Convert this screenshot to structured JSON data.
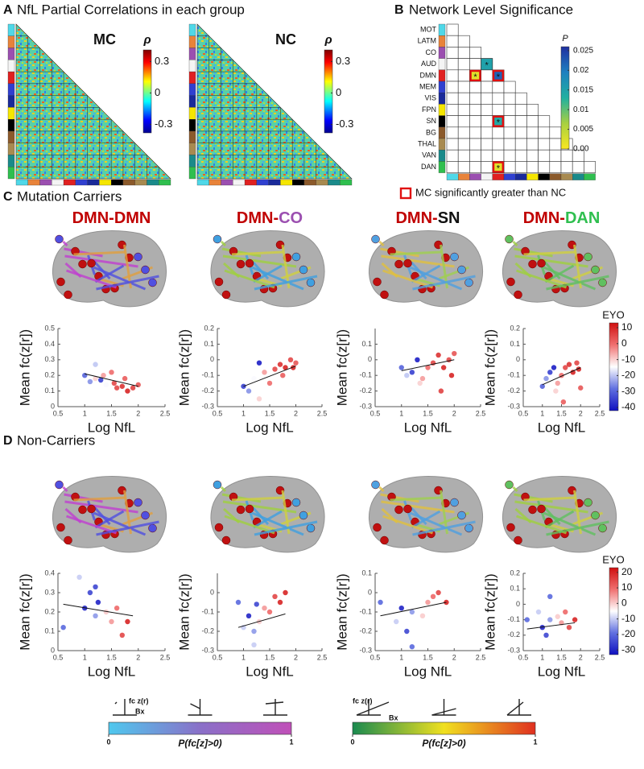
{
  "panel_a": {
    "letter": "A",
    "title": "NfL Partial Correlations in each group",
    "groups": [
      "MC",
      "NC"
    ],
    "colorbar": {
      "label": "ρ",
      "lim": [
        -0.38,
        0.41
      ],
      "ticks": [
        0.3,
        0,
        -0.3
      ]
    }
  },
  "panel_b": {
    "letter": "B",
    "title": "Network Level Significance",
    "networks": [
      {
        "name": "MOT",
        "color": "#4fd8e8"
      },
      {
        "name": "LATM",
        "color": "#e8833a"
      },
      {
        "name": "CO",
        "color": "#9b4fb0"
      },
      {
        "name": "AUD",
        "color": "#f4f4f4"
      },
      {
        "name": "DMN",
        "color": "#e02020"
      },
      {
        "name": "MEM",
        "color": "#3040d0"
      },
      {
        "name": "VIS",
        "color": "#1a2a9a"
      },
      {
        "name": "FPN",
        "color": "#f5e600"
      },
      {
        "name": "SN",
        "color": "#000000"
      },
      {
        "name": "BG",
        "color": "#8b5a2b"
      },
      {
        "name": "THAL",
        "color": "#a88a50"
      },
      {
        "name": "VAN",
        "color": "#1a8a8a"
      },
      {
        "name": "DAN",
        "color": "#2fbf4f"
      }
    ],
    "cells": [
      {
        "row": "AUD",
        "col": "AUD",
        "p": 0.015,
        "label": "*",
        "boxed": false
      },
      {
        "row": "DMN",
        "col": "CO",
        "p": 0.002,
        "label": "*",
        "boxed": true
      },
      {
        "row": "DMN",
        "col": "DMN",
        "p": 0.022,
        "label": "*",
        "boxed": true
      },
      {
        "row": "SN",
        "col": "DMN",
        "p": 0.014,
        "label": "*",
        "boxed": true
      },
      {
        "row": "DAN",
        "col": "DMN",
        "p": 0.002,
        "label": "*",
        "boxed": true
      }
    ],
    "colorbar": {
      "label": "P",
      "lim": [
        0,
        0.026
      ],
      "ticks": [
        0.025,
        0.02,
        0.015,
        0.01,
        0.005,
        {
          "value": 0,
          "label": "0.00"
        }
      ]
    },
    "legend": "MC significantly greater than NC"
  },
  "panels": [
    {
      "letter": "C",
      "title": "Mutation Carriers",
      "colorbar": {
        "label": "EYO",
        "lim": [
          -42,
          13
        ],
        "ticks": [
          10,
          0,
          -10,
          -20,
          -30,
          -40
        ]
      },
      "plots": [
        {
          "title": {
            "a": "DMN",
            "sep": "-",
            "b": "DMN",
            "a_color": "#c00000",
            "b_color": "#c00000"
          },
          "xlabel": "Log NfL",
          "ylabel": "Mean fc(z[r])",
          "xlim": [
            0.5,
            2.5
          ],
          "xticks": [
            0.5,
            1,
            1.5,
            2,
            2.5
          ],
          "ylim": [
            0,
            0.5
          ],
          "yticks": [
            0,
            0.1,
            0.2,
            0.3,
            0.4,
            0.5
          ],
          "points": [
            [
              1.0,
              0.2,
              -30
            ],
            [
              1.1,
              0.16,
              -25
            ],
            [
              1.2,
              0.18,
              -10
            ],
            [
              1.3,
              0.17,
              -35
            ],
            [
              1.35,
              0.2,
              -5
            ],
            [
              1.4,
              0.14,
              -15
            ],
            [
              1.5,
              0.22,
              0
            ],
            [
              1.55,
              0.15,
              5
            ],
            [
              1.6,
              0.12,
              5
            ],
            [
              1.7,
              0.13,
              8
            ],
            [
              1.75,
              0.18,
              2
            ],
            [
              1.8,
              0.1,
              10
            ],
            [
              1.9,
              0.12,
              6
            ],
            [
              2.0,
              0.14,
              3
            ],
            [
              1.2,
              0.27,
              -20
            ]
          ],
          "fit": [
            1,
            0.21,
            2,
            0.13
          ]
        },
        {
          "title": {
            "a": "DMN",
            "sep": "-",
            "b": "CO",
            "a_color": "#c00000",
            "b_color": "#9b4fb0"
          },
          "xlabel": "Log NfL",
          "ylabel": "Mean fc(z[r])",
          "xlim": [
            0.5,
            2.5
          ],
          "xticks": [
            0.5,
            1,
            1.5,
            2,
            2.5
          ],
          "ylim": [
            -0.3,
            0.2
          ],
          "yticks": [
            -0.3,
            -0.2,
            -0.1,
            0,
            0.1,
            0.2
          ],
          "points": [
            [
              1.0,
              -0.17,
              -35
            ],
            [
              1.1,
              -0.2,
              -25
            ],
            [
              1.2,
              -0.12,
              -15
            ],
            [
              1.3,
              -0.02,
              -40
            ],
            [
              1.4,
              -0.08,
              -5
            ],
            [
              1.5,
              -0.15,
              0
            ],
            [
              1.6,
              -0.06,
              5
            ],
            [
              1.7,
              -0.03,
              8
            ],
            [
              1.8,
              -0.05,
              10
            ],
            [
              1.9,
              0.0,
              5
            ],
            [
              2.0,
              -0.02,
              3
            ],
            [
              1.3,
              -0.25,
              -10
            ],
            [
              1.75,
              -0.1,
              2
            ],
            [
              1.95,
              -0.05,
              10
            ]
          ],
          "fit": [
            1,
            -0.17,
            2,
            -0.04
          ]
        },
        {
          "title": {
            "a": "DMN",
            "sep": "-",
            "b": "SN",
            "a_color": "#c00000",
            "b_color": "#111111"
          },
          "xlabel": "Log NfL",
          "ylabel": "Mean fc(z[r])",
          "xlim": [
            0.5,
            2.5
          ],
          "xticks": [
            0.5,
            1,
            1.5,
            2,
            2.5
          ],
          "ylim": [
            -0.3,
            0.2
          ],
          "yticks": [
            -0.3,
            -0.2,
            -0.1,
            0,
            0.1
          ],
          "points": [
            [
              1.0,
              -0.05,
              -30
            ],
            [
              1.1,
              -0.1,
              -20
            ],
            [
              1.2,
              -0.08,
              -35
            ],
            [
              1.3,
              0.0,
              -40
            ],
            [
              1.4,
              -0.12,
              -5
            ],
            [
              1.5,
              -0.05,
              0
            ],
            [
              1.6,
              -0.02,
              5
            ],
            [
              1.7,
              0.03,
              8
            ],
            [
              1.8,
              -0.05,
              10
            ],
            [
              1.9,
              0.0,
              5
            ],
            [
              2.0,
              0.04,
              3
            ],
            [
              1.35,
              -0.15,
              -10
            ],
            [
              1.75,
              -0.2,
              6
            ],
            [
              1.95,
              -0.1,
              10
            ]
          ],
          "fit": [
            1,
            -0.07,
            2,
            0.0
          ]
        },
        {
          "title": {
            "a": "DMN",
            "sep": "-",
            "b": "DAN",
            "a_color": "#c00000",
            "b_color": "#2fbf4f"
          },
          "xlabel": "Log NfL",
          "ylabel": "Mean fc(z[r])",
          "xlim": [
            0.5,
            2.5
          ],
          "xticks": [
            0.5,
            1,
            1.5,
            2,
            2.5
          ],
          "ylim": [
            -0.3,
            0.2
          ],
          "yticks": [
            -0.3,
            -0.2,
            -0.1,
            0,
            0.1,
            0.2
          ],
          "points": [
            [
              1.0,
              -0.17,
              -30
            ],
            [
              1.1,
              -0.12,
              -25
            ],
            [
              1.2,
              -0.08,
              -35
            ],
            [
              1.3,
              -0.05,
              -40
            ],
            [
              1.4,
              -0.15,
              -5
            ],
            [
              1.5,
              -0.1,
              0
            ],
            [
              1.6,
              -0.05,
              5
            ],
            [
              1.7,
              -0.03,
              8
            ],
            [
              1.8,
              -0.08,
              10
            ],
            [
              1.9,
              -0.02,
              5
            ],
            [
              2.0,
              -0.18,
              3
            ],
            [
              1.35,
              -0.2,
              -10
            ],
            [
              1.55,
              -0.27,
              2
            ],
            [
              1.95,
              -0.06,
              10
            ]
          ],
          "fit": [
            1,
            -0.16,
            2,
            -0.05
          ]
        }
      ]
    },
    {
      "letter": "D",
      "title": "Non-Carriers",
      "colorbar": {
        "label": "EYO",
        "lim": [
          -33,
          23
        ],
        "ticks": [
          20,
          10,
          0,
          -10,
          -20,
          -30
        ]
      },
      "plots": [
        {
          "xlabel": "Log NfL",
          "ylabel": "Mean fc(z[r])",
          "xlim": [
            0.5,
            2.5
          ],
          "xticks": [
            0.5,
            1,
            1.5,
            2,
            2.5
          ],
          "ylim": [
            0,
            0.4
          ],
          "yticks": [
            0,
            0.1,
            0.2,
            0.3,
            0.4
          ],
          "points": [
            [
              0.6,
              0.12,
              -20
            ],
            [
              0.9,
              0.38,
              -10
            ],
            [
              1.0,
              0.22,
              -30
            ],
            [
              1.1,
              0.3,
              -25
            ],
            [
              1.2,
              0.18,
              -15
            ],
            [
              1.25,
              0.25,
              -30
            ],
            [
              1.3,
              0.1,
              -5
            ],
            [
              1.4,
              0.2,
              0
            ],
            [
              1.5,
              0.15,
              5
            ],
            [
              1.6,
              0.22,
              10
            ],
            [
              1.7,
              0.08,
              15
            ],
            [
              1.8,
              0.15,
              20
            ],
            [
              1.2,
              0.33,
              -25
            ]
          ],
          "fit": [
            0.6,
            0.24,
            1.9,
            0.18
          ]
        },
        {
          "xlabel": "Log NfL",
          "ylabel": "Mean fc(z[r])",
          "xlim": [
            0.5,
            2.5
          ],
          "xticks": [
            0.5,
            1,
            1.5,
            2,
            2.5
          ],
          "ylim": [
            -0.3,
            0.1
          ],
          "yticks": [
            -0.3,
            -0.2,
            -0.1,
            0
          ],
          "points": [
            [
              0.9,
              -0.05,
              -20
            ],
            [
              1.0,
              -0.18,
              -10
            ],
            [
              1.1,
              -0.12,
              -30
            ],
            [
              1.2,
              -0.2,
              -15
            ],
            [
              1.25,
              -0.06,
              -25
            ],
            [
              1.3,
              -0.15,
              0
            ],
            [
              1.4,
              -0.08,
              5
            ],
            [
              1.5,
              -0.1,
              10
            ],
            [
              1.6,
              -0.02,
              15
            ],
            [
              1.7,
              -0.05,
              20
            ],
            [
              1.8,
              0.0,
              20
            ],
            [
              1.2,
              -0.27,
              -10
            ]
          ],
          "fit": [
            0.9,
            -0.18,
            1.8,
            -0.11
          ]
        },
        {
          "xlabel": "Log NfL",
          "ylabel": "Mean fc(z[r])",
          "xlim": [
            0.5,
            2.5
          ],
          "xticks": [
            0.5,
            1,
            1.5,
            2,
            2.5
          ],
          "ylim": [
            -0.3,
            0.1
          ],
          "yticks": [
            -0.3,
            -0.2,
            -0.1,
            0,
            0.1
          ],
          "points": [
            [
              0.6,
              -0.05,
              -20
            ],
            [
              0.9,
              -0.15,
              -10
            ],
            [
              1.0,
              -0.08,
              -30
            ],
            [
              1.1,
              -0.2,
              -25
            ],
            [
              1.2,
              -0.1,
              -15
            ],
            [
              1.3,
              0.02,
              -5
            ],
            [
              1.4,
              -0.12,
              0
            ],
            [
              1.5,
              -0.05,
              5
            ],
            [
              1.6,
              -0.02,
              10
            ],
            [
              1.7,
              0.0,
              15
            ],
            [
              1.85,
              -0.05,
              20
            ],
            [
              1.2,
              -0.28,
              -20
            ]
          ],
          "fit": [
            0.6,
            -0.12,
            1.85,
            -0.05
          ]
        },
        {
          "xlabel": "Log NfL",
          "ylabel": "Mean fc(z[r])",
          "xlim": [
            0.5,
            2.5
          ],
          "xticks": [
            0.5,
            1,
            1.5,
            2,
            2.5
          ],
          "ylim": [
            -0.3,
            0.2
          ],
          "yticks": [
            -0.3,
            -0.2,
            -0.1,
            0,
            0.1,
            0.2
          ],
          "points": [
            [
              0.6,
              -0.1,
              -20
            ],
            [
              0.9,
              -0.05,
              -10
            ],
            [
              1.0,
              -0.15,
              -30
            ],
            [
              1.1,
              -0.2,
              -25
            ],
            [
              1.2,
              -0.1,
              -15
            ],
            [
              1.3,
              -0.25,
              -5
            ],
            [
              1.4,
              -0.08,
              0
            ],
            [
              1.5,
              -0.12,
              5
            ],
            [
              1.6,
              -0.05,
              10
            ],
            [
              1.7,
              -0.15,
              15
            ],
            [
              1.85,
              -0.1,
              20
            ],
            [
              1.2,
              0.05,
              -20
            ]
          ],
          "fit": [
            0.6,
            -0.16,
            1.85,
            -0.12
          ]
        }
      ]
    }
  ],
  "legend": {
    "bars": [
      {
        "label": "P(fc[z]>0)",
        "ticks": [
          0,
          1
        ],
        "lim": [
          0,
          1
        ],
        "axis_y": "fc z(r)",
        "axis_x": "Bx",
        "colors": [
          "#4fc8ee",
          "#8a70c8",
          "#c050b8"
        ]
      },
      {
        "label": "P(fc[z]>0)",
        "ticks": [
          0,
          1
        ],
        "lim": [
          0,
          1
        ],
        "axis_y": "fc z(r)",
        "axis_x": "Bx",
        "colors": [
          "#1a8a50",
          "#f0e020",
          "#e03020"
        ]
      }
    ]
  }
}
